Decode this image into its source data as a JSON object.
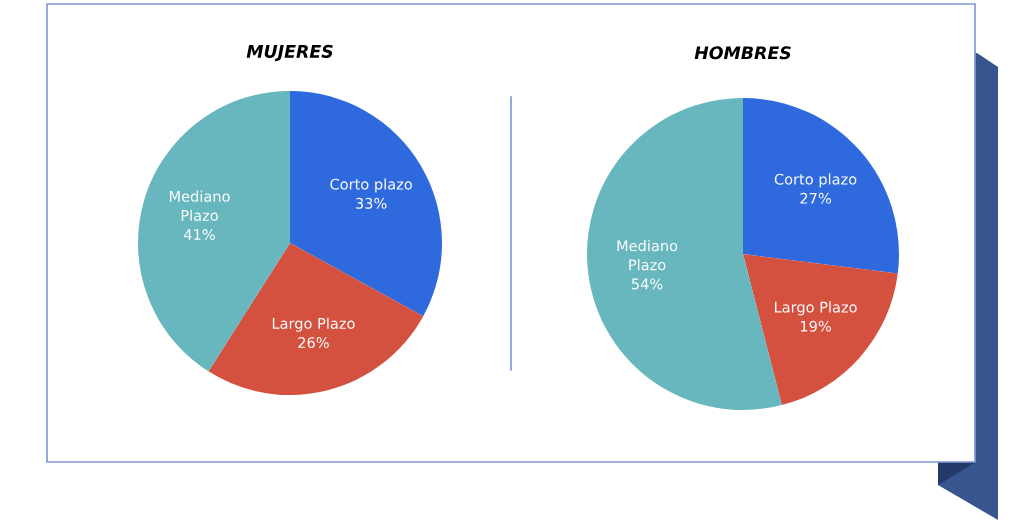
{
  "chart_data": [
    {
      "type": "pie",
      "title": "MUJERES",
      "categories": [
        "Corto plazo",
        "Largo Plazo",
        "Mediano\nPlazo"
      ],
      "values": [
        33,
        26,
        41
      ],
      "colors": [
        "#2e69de",
        "#d4503f",
        "#68b6be"
      ],
      "value_labels": [
        "33%",
        "26%",
        "41%"
      ]
    },
    {
      "type": "pie",
      "title": "HOMBRES",
      "categories": [
        "Corto plazo",
        "Largo Plazo",
        "Mediano\nPlazo"
      ],
      "values": [
        27,
        19,
        54
      ],
      "colors": [
        "#2e69de",
        "#d4503f",
        "#68b6be"
      ],
      "value_labels": [
        "27%",
        "19%",
        "54%"
      ]
    }
  ]
}
